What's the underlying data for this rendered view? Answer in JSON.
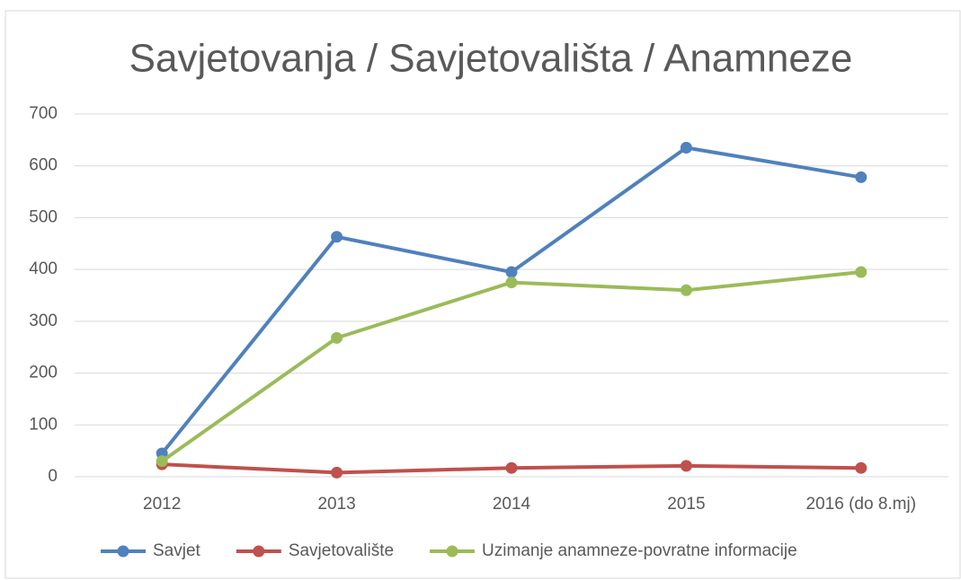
{
  "chart_data": {
    "type": "line",
    "title": "Savjetovanja / Savjetovališta / Anamneze",
    "categories": [
      "2012",
      "2013",
      "2014",
      "2015",
      "2016 (do 8.mj)"
    ],
    "series": [
      {
        "name": "Savjet",
        "color": "#4f81bd",
        "values": [
          45,
          463,
          395,
          635,
          578
        ]
      },
      {
        "name": "Savjetovalište",
        "color": "#c0504d",
        "values": [
          24,
          8,
          17,
          21,
          17
        ]
      },
      {
        "name": "Uzimanje anamneze-povratne informacije",
        "color": "#9bbb59",
        "values": [
          30,
          268,
          375,
          360,
          395
        ]
      }
    ],
    "ylim": [
      0,
      700
    ],
    "yticks": [
      0,
      100,
      200,
      300,
      400,
      500,
      600,
      700
    ],
    "grid": true,
    "legend": "bottom"
  }
}
